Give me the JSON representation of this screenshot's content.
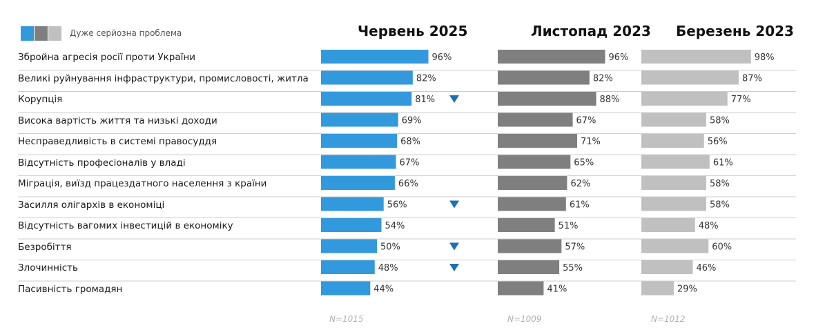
{
  "legend": {
    "label": "Дуже серйозна проблема"
  },
  "colors": {
    "june2025": "#3399dd",
    "nov2023": "#7f7f7f",
    "mar2023": "#c0c0c0",
    "arrow": "#1f6fb5",
    "divider": "#cccccc"
  },
  "chart_data": {
    "type": "bar",
    "orientation": "horizontal",
    "categories": [
      "Збройна агресія росії проти України",
      "Великі руйнування інфраструктури, промисловості, житла",
      "Корупція",
      "Висока вартість життя та низькі доходи",
      "Несправедливість в системі правосуддя",
      "Відсутність професіоналів у владі",
      "Міграція, виїзд працездатного населення з країни",
      "Засилля олігархів в економіці",
      "Відсутність вагомих інвестицій в економіку",
      "Безробіття",
      "Злочинність",
      "Пасивність громадян"
    ],
    "series": [
      {
        "name": "Червень 2025",
        "n_label": "N=1015",
        "values": [
          96,
          82,
          81,
          69,
          68,
          67,
          66,
          56,
          54,
          50,
          48,
          44
        ],
        "labels": [
          "96%",
          "82%",
          "81%",
          "69%",
          "68%",
          "67%",
          "66%",
          "56%",
          "54%",
          "50%",
          "48%",
          "44%"
        ],
        "decrease_markers": [
          false,
          false,
          true,
          false,
          false,
          false,
          false,
          true,
          false,
          true,
          true,
          false
        ]
      },
      {
        "name": "Листопад 2023",
        "n_label": "N=1009",
        "values": [
          96,
          82,
          88,
          67,
          71,
          65,
          62,
          61,
          51,
          57,
          55,
          41
        ],
        "labels": [
          "96%",
          "82%",
          "88%",
          "67%",
          "71%",
          "65%",
          "62%",
          "61%",
          "51%",
          "57%",
          "55%",
          "41%"
        ]
      },
      {
        "name": "Березень 2023",
        "n_label": "N=1012",
        "values": [
          98,
          87,
          77,
          58,
          56,
          61,
          58,
          58,
          48,
          60,
          46,
          29
        ],
        "labels": [
          "98%",
          "87%",
          "77%",
          "58%",
          "56%",
          "61%",
          "58%",
          "58%",
          "48%",
          "60%",
          "46%",
          "29%"
        ]
      }
    ],
    "xlim": [
      0,
      100
    ],
    "grid": false,
    "legend_position": "top-left"
  }
}
